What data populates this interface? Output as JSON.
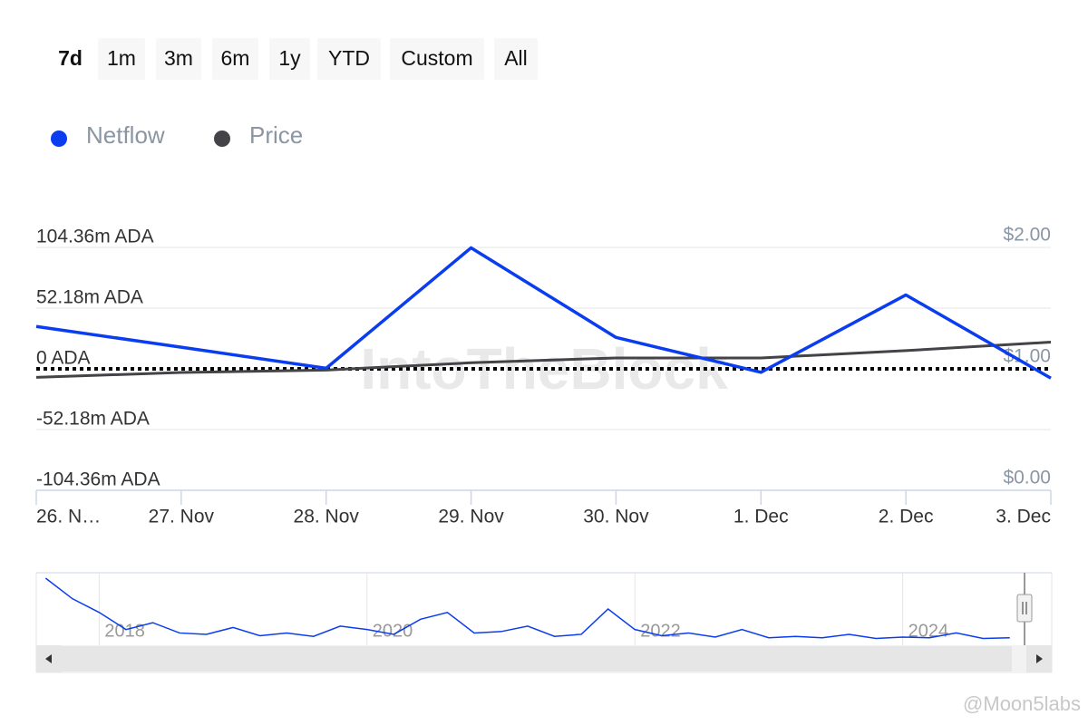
{
  "range_buttons": [
    "7d",
    "1m",
    "3m",
    "6m",
    "1y",
    "YTD",
    "Custom",
    "All"
  ],
  "selected_range": "7d",
  "watermarks": [
    "IntoTheBlock",
    "@Moon5labs"
  ],
  "chart_data": {
    "type": "line",
    "categories": [
      "26. N…",
      "27. Nov",
      "28. Nov",
      "29. Nov",
      "30. Nov",
      "1. Dec",
      "2. Dec",
      "3. Dec"
    ],
    "series": [
      {
        "name": "Netflow",
        "color": "#0a3cf0",
        "values": [
          36.4,
          18.6,
          0.5,
          104,
          27,
          -3,
          63.5,
          -8
        ]
      },
      {
        "name": "Price",
        "color": "#434348",
        "axis": "y2",
        "values": [
          0.93,
          0.97,
          0.99,
          1.05,
          1.09,
          1.09,
          1.15,
          1.22
        ]
      }
    ],
    "ylim": [
      -104.36,
      104.36
    ],
    "yticks": [
      {
        "value": 104.36,
        "label": "104.36m ADA"
      },
      {
        "value": 52.18,
        "label": "52.18m ADA"
      },
      {
        "value": 0,
        "label": "0 ADA"
      },
      {
        "value": -52.18,
        "label": "-52.18m ADA"
      },
      {
        "value": -104.36,
        "label": "-104.36m ADA"
      }
    ],
    "y2lim": [
      0,
      2
    ],
    "y2ticks": [
      {
        "value": 2,
        "label": "$2.00"
      },
      {
        "value": 1,
        "label": "$1.00"
      },
      {
        "value": 0,
        "label": "$0.00"
      }
    ],
    "grid": true,
    "legend": "top-left",
    "navigator": {
      "color": "#0a3cf0",
      "xlim": [
        2017.53,
        2024.91
      ],
      "xticks": [
        2018,
        2020,
        2022,
        2024
      ],
      "x": [
        2017.6,
        2017.8,
        2018.0,
        2018.2,
        2018.4,
        2018.6,
        2018.8,
        2019.0,
        2019.2,
        2019.4,
        2019.6,
        2019.8,
        2020.0,
        2020.2,
        2020.4,
        2020.6,
        2020.8,
        2021.0,
        2021.2,
        2021.4,
        2021.6,
        2021.8,
        2022.0,
        2022.2,
        2022.4,
        2022.6,
        2022.8,
        2023.0,
        2023.2,
        2023.4,
        2023.6,
        2023.8,
        2024.0,
        2024.2,
        2024.4,
        2024.6,
        2024.8
      ],
      "values": [
        90,
        60,
        40,
        15,
        25,
        10,
        8,
        18,
        6,
        10,
        5,
        20,
        15,
        8,
        30,
        40,
        10,
        12,
        20,
        5,
        8,
        45,
        15,
        6,
        10,
        4,
        15,
        3,
        5,
        3,
        8,
        2,
        4,
        3,
        10,
        2,
        3
      ]
    }
  }
}
